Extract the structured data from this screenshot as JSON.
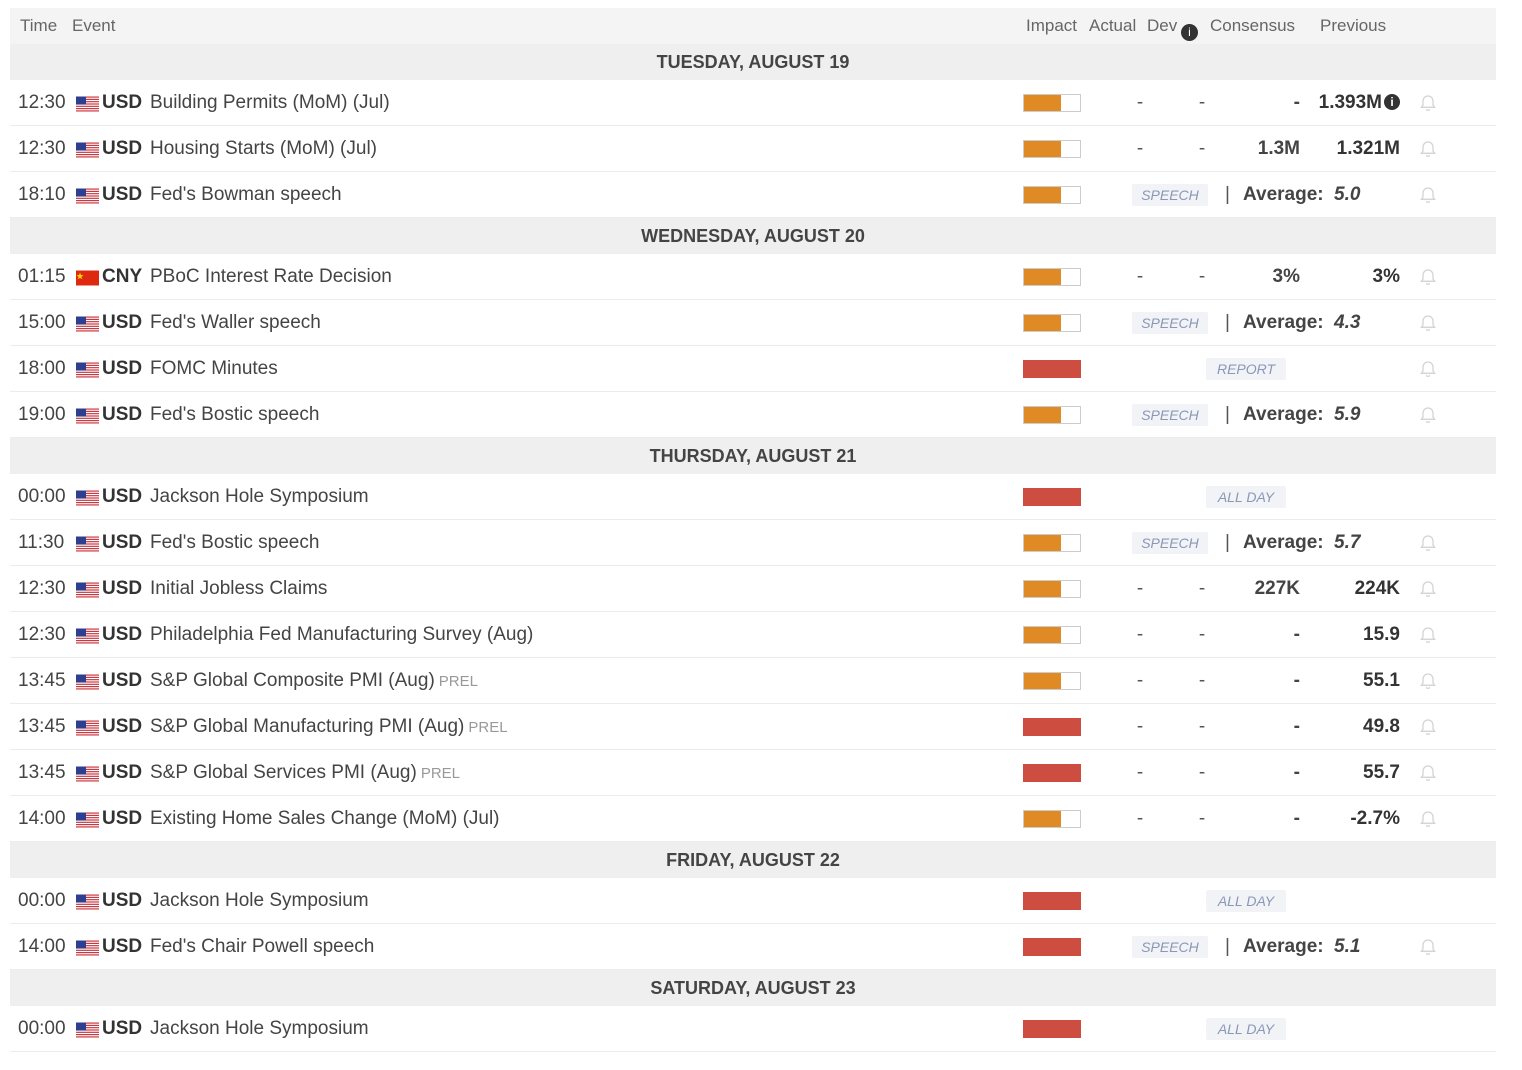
{
  "header": {
    "time": "Time",
    "event": "Event",
    "impact": "Impact",
    "actual": "Actual",
    "dev": "Dev",
    "consensus": "Consensus",
    "previous": "Previous"
  },
  "colors": {
    "impact_medium": "#e08a25",
    "impact_high": "#cd4d41",
    "tag_text": "#8a98b6"
  },
  "days": [
    {
      "label": "TUESDAY, AUGUST 19",
      "events": [
        {
          "time": "12:30",
          "flag": "us-flag",
          "currency": "USD",
          "name": "Building Permits (MoM) (Jul)",
          "impact": "medium",
          "kind": "data",
          "actual": "-",
          "dev": "-",
          "consensus": "-",
          "previous": "1.393M",
          "previous_info": "i"
        },
        {
          "time": "12:30",
          "flag": "us-flag",
          "currency": "USD",
          "name": "Housing Starts (MoM) (Jul)",
          "impact": "medium",
          "kind": "data",
          "actual": "-",
          "dev": "-",
          "consensus": "1.3M",
          "previous": "1.321M"
        },
        {
          "time": "18:10",
          "flag": "us-flag",
          "currency": "USD",
          "name": "Fed's Bowman speech",
          "impact": "medium",
          "kind": "speech",
          "tag": "SPEECH",
          "sep": "|",
          "avg_label": "Average:",
          "avg_value": "5.0"
        }
      ]
    },
    {
      "label": "WEDNESDAY, AUGUST 20",
      "events": [
        {
          "time": "01:15",
          "flag": "cn-flag",
          "currency": "CNY",
          "name": "PBoC Interest Rate Decision",
          "impact": "medium",
          "kind": "data",
          "actual": "-",
          "dev": "-",
          "consensus": "3%",
          "previous": "3%"
        },
        {
          "time": "15:00",
          "flag": "us-flag",
          "currency": "USD",
          "name": "Fed's Waller speech",
          "impact": "medium",
          "kind": "speech",
          "tag": "SPEECH",
          "sep": "|",
          "avg_label": "Average:",
          "avg_value": "4.3"
        },
        {
          "time": "18:00",
          "flag": "us-flag",
          "currency": "USD",
          "name": "FOMC Minutes",
          "impact": "high",
          "kind": "report",
          "tag": "REPORT"
        },
        {
          "time": "19:00",
          "flag": "us-flag",
          "currency": "USD",
          "name": "Fed's Bostic speech",
          "impact": "medium",
          "kind": "speech",
          "tag": "SPEECH",
          "sep": "|",
          "avg_label": "Average:",
          "avg_value": "5.9"
        }
      ]
    },
    {
      "label": "THURSDAY, AUGUST 21",
      "events": [
        {
          "time": "00:00",
          "flag": "us-flag",
          "currency": "USD",
          "name": "Jackson Hole Symposium",
          "impact": "high",
          "kind": "allday",
          "tag": "ALL DAY",
          "no_bell": true
        },
        {
          "time": "11:30",
          "flag": "us-flag",
          "currency": "USD",
          "name": "Fed's Bostic speech",
          "impact": "medium",
          "kind": "speech",
          "tag": "SPEECH",
          "sep": "|",
          "avg_label": "Average:",
          "avg_value": "5.7"
        },
        {
          "time": "12:30",
          "flag": "us-flag",
          "currency": "USD",
          "name": "Initial Jobless Claims",
          "impact": "medium",
          "kind": "data",
          "actual": "-",
          "dev": "-",
          "consensus": "227K",
          "previous": "224K"
        },
        {
          "time": "12:30",
          "flag": "us-flag",
          "currency": "USD",
          "name": "Philadelphia Fed Manufacturing Survey (Aug)",
          "impact": "medium",
          "kind": "data",
          "actual": "-",
          "dev": "-",
          "consensus": "-",
          "previous": "15.9"
        },
        {
          "time": "13:45",
          "flag": "us-flag",
          "currency": "USD",
          "name": "S&P Global Composite PMI (Aug)",
          "suffix": "PREL",
          "impact": "medium",
          "kind": "data",
          "actual": "-",
          "dev": "-",
          "consensus": "-",
          "previous": "55.1"
        },
        {
          "time": "13:45",
          "flag": "us-flag",
          "currency": "USD",
          "name": "S&P Global Manufacturing PMI (Aug)",
          "suffix": "PREL",
          "impact": "high",
          "kind": "data",
          "actual": "-",
          "dev": "-",
          "consensus": "-",
          "previous": "49.8"
        },
        {
          "time": "13:45",
          "flag": "us-flag",
          "currency": "USD",
          "name": "S&P Global Services PMI (Aug)",
          "suffix": "PREL",
          "impact": "high",
          "kind": "data",
          "actual": "-",
          "dev": "-",
          "consensus": "-",
          "previous": "55.7"
        },
        {
          "time": "14:00",
          "flag": "us-flag",
          "currency": "USD",
          "name": "Existing Home Sales Change (MoM) (Jul)",
          "impact": "medium",
          "kind": "data",
          "actual": "-",
          "dev": "-",
          "consensus": "-",
          "previous": "-2.7%"
        }
      ]
    },
    {
      "label": "FRIDAY, AUGUST 22",
      "events": [
        {
          "time": "00:00",
          "flag": "us-flag",
          "currency": "USD",
          "name": "Jackson Hole Symposium",
          "impact": "high",
          "kind": "allday",
          "tag": "ALL DAY",
          "no_bell": true
        },
        {
          "time": "14:00",
          "flag": "us-flag",
          "currency": "USD",
          "name": "Fed's Chair Powell speech",
          "impact": "high",
          "kind": "speech",
          "tag": "SPEECH",
          "sep": "|",
          "avg_label": "Average:",
          "avg_value": "5.1"
        }
      ]
    },
    {
      "label": "SATURDAY, AUGUST 23",
      "events": [
        {
          "time": "00:00",
          "flag": "us-flag",
          "currency": "USD",
          "name": "Jackson Hole Symposium",
          "impact": "high",
          "kind": "allday",
          "tag": "ALL DAY",
          "no_bell": true
        }
      ]
    }
  ]
}
